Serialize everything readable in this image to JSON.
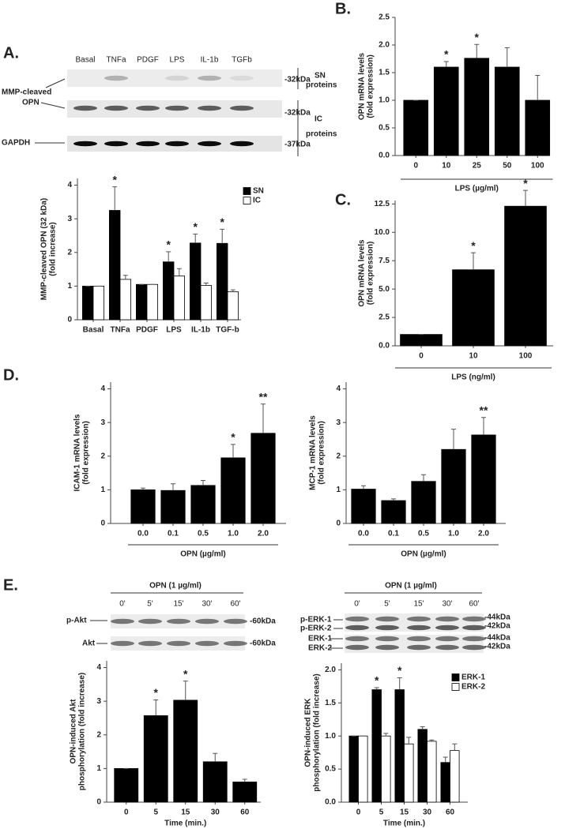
{
  "figure": {
    "panels": [
      "A.",
      "B.",
      "C.",
      "D.",
      "E."
    ],
    "blot_a": {
      "lanes": [
        "Basal",
        "TNFa",
        "PDGF",
        "LPS",
        "IL-1b",
        "TGFb"
      ],
      "sizes": [
        "-32kDa",
        "-32kDa",
        "-37kDa"
      ],
      "groups": [
        [
          "SN",
          "proteins"
        ],
        [
          "IC",
          "proteins"
        ]
      ],
      "bands": [
        [
          "MMP-cleaved",
          "OPN"
        ],
        "GAPDH"
      ]
    },
    "blot_e_akt": {
      "treatment": "OPN (1 µg/ml)",
      "lanes": [
        "0'",
        "5'",
        "15'",
        "30'",
        "60'"
      ],
      "bands": [
        "p-Akt",
        "Akt"
      ],
      "sizes": [
        "-60kDa",
        "-60kDa"
      ]
    },
    "blot_e_erk": {
      "treatment": "OPN (1 µg/ml)",
      "lanes": [
        "0'",
        "5'",
        "15'",
        "30'",
        "60'"
      ],
      "bands": [
        "p-ERK-1",
        "p-ERK-2",
        "ERK-1",
        "ERK-2"
      ],
      "sizes": [
        "-44kDa",
        "-42kDa",
        "-44kDa",
        "-42kDa"
      ]
    }
  },
  "chart_data": [
    {
      "type": "bar",
      "ylabel": [
        "MMP-cleaved OPN (32 kDa)",
        "(fold increase)"
      ],
      "categories": [
        "Basal",
        "TNFa",
        "PDGF",
        "LPS",
        "IL-1b",
        "TGF-b"
      ],
      "series": [
        {
          "name": "SN",
          "color": "#000000",
          "values": [
            1,
            3.25,
            1.05,
            1.72,
            2.28,
            2.27
          ],
          "errors": [
            0,
            0.7,
            0,
            0.3,
            0.27,
            0.42
          ],
          "significance": [
            null,
            "*",
            null,
            "*",
            "*",
            "*"
          ]
        },
        {
          "name": "IC",
          "color": "#ffffff",
          "values": [
            1,
            1.2,
            1.05,
            1.3,
            1.02,
            0.83
          ],
          "errors": [
            0,
            0.12,
            0,
            0.22,
            0.07,
            0.06
          ]
        }
      ],
      "ylim": [
        0,
        4.2
      ],
      "yticks": [
        0,
        1,
        2,
        3,
        4
      ],
      "legend": "upper right"
    },
    {
      "type": "bar",
      "ylabel": [
        "OPN mRNA levels",
        "(fold expression)"
      ],
      "xlabel": "LPS (µg/ml)",
      "categories": [
        "0",
        "10",
        "25",
        "50",
        "100"
      ],
      "series": [
        {
          "color": "#000000",
          "values": [
            1,
            1.6,
            1.76,
            1.6,
            1.0
          ],
          "errors": [
            0,
            0.1,
            0.25,
            0.35,
            0.45
          ],
          "significance": [
            null,
            "*",
            "*",
            null,
            null
          ]
        }
      ],
      "ylim": [
        0,
        2.5
      ],
      "yticks": [
        {
          "value": 0,
          "label": "0.0"
        },
        0.5,
        {
          "value": 1,
          "label": "1.0"
        },
        1.5,
        {
          "value": 2,
          "label": "2.0"
        },
        2.5
      ]
    },
    {
      "type": "bar",
      "ylabel": [
        "OPN mRNA levels",
        "(fold expression)"
      ],
      "xlabel": "LPS (ng/ml)",
      "categories": [
        "0",
        "10",
        "100"
      ],
      "series": [
        {
          "color": "#000000",
          "values": [
            1,
            6.7,
            12.3
          ],
          "errors": [
            0,
            1.5,
            1.4
          ],
          "significance": [
            null,
            "*",
            "*"
          ]
        }
      ],
      "ylim": [
        0,
        12.8
      ],
      "yticks": [
        {
          "value": 0,
          "label": "0.0"
        },
        2.5,
        {
          "value": 5,
          "label": "5.0"
        },
        7.5,
        {
          "value": 10,
          "label": "10.0"
        },
        12.5
      ]
    },
    {
      "type": "bar",
      "ylabel": [
        "ICAM-1 mRNA levels",
        "(fold expression)"
      ],
      "xlabel": "OPN (µg/ml)",
      "categories": [
        "0.0",
        "0.1",
        "0.5",
        "1.0",
        "2.0"
      ],
      "series": [
        {
          "color": "#000000",
          "values": [
            1.0,
            0.98,
            1.13,
            1.95,
            2.68
          ],
          "errors": [
            0.05,
            0.2,
            0.15,
            0.4,
            0.87
          ],
          "significance": [
            null,
            null,
            null,
            "*",
            "**"
          ]
        }
      ],
      "ylim": [
        0,
        4.2
      ],
      "yticks": [
        0,
        1,
        2,
        3,
        4
      ]
    },
    {
      "type": "bar",
      "ylabel": [
        "MCP-1 mRNA levels",
        "(fold expression)"
      ],
      "xlabel": "OPN (µg/ml)",
      "categories": [
        "0.0",
        "0.1",
        "0.5",
        "1.0",
        "2.0"
      ],
      "series": [
        {
          "color": "#000000",
          "values": [
            1.02,
            0.68,
            1.25,
            2.2,
            2.63
          ],
          "errors": [
            0.1,
            0.05,
            0.2,
            0.6,
            0.52
          ],
          "significance": [
            null,
            null,
            null,
            null,
            "**"
          ]
        }
      ],
      "ylim": [
        0,
        4.2
      ],
      "yticks": [
        0,
        1,
        2,
        3,
        4
      ]
    },
    {
      "type": "bar",
      "ylabel": [
        "OPN-induced Akt",
        "phosphorylation (fold increase)"
      ],
      "xlabel": "Time (min.)",
      "categories": [
        "0",
        "5",
        "15",
        "30",
        "60"
      ],
      "series": [
        {
          "color": "#000000",
          "values": [
            1.0,
            2.57,
            3.03,
            1.2,
            0.6
          ],
          "errors": [
            0,
            0.47,
            0.57,
            0.25,
            0.08
          ],
          "significance": [
            null,
            "*",
            "*",
            null,
            null
          ]
        }
      ],
      "ylim": [
        0,
        4.2
      ],
      "yticks": [
        0,
        1,
        2,
        3,
        4
      ]
    },
    {
      "type": "bar",
      "ylabel": [
        "OPN-induced ERK",
        "phosphorylation (fold increase)"
      ],
      "xlabel": "Time (min.)",
      "categories": [
        "0",
        "5",
        "15",
        "30",
        "60"
      ],
      "series": [
        {
          "name": "ERK-1",
          "color": "#000000",
          "values": [
            1.0,
            1.7,
            1.7,
            1.1,
            0.6
          ],
          "errors": [
            0,
            0.03,
            0.18,
            0.04,
            0.08
          ],
          "significance": [
            null,
            "*",
            "*",
            null,
            null
          ]
        },
        {
          "name": "ERK-2",
          "color": "#ffffff",
          "values": [
            1.0,
            1.0,
            0.88,
            0.92,
            0.78
          ],
          "errors": [
            0,
            0.04,
            0.1,
            0.02,
            0.1
          ]
        }
      ],
      "ylim": [
        0,
        2.1
      ],
      "yticks": [
        {
          "value": 0,
          "label": "0.0"
        },
        0.5,
        {
          "value": 1,
          "label": "1.0"
        },
        1.5,
        {
          "value": 2,
          "label": "2.0"
        }
      ],
      "legend": "upper right"
    }
  ]
}
